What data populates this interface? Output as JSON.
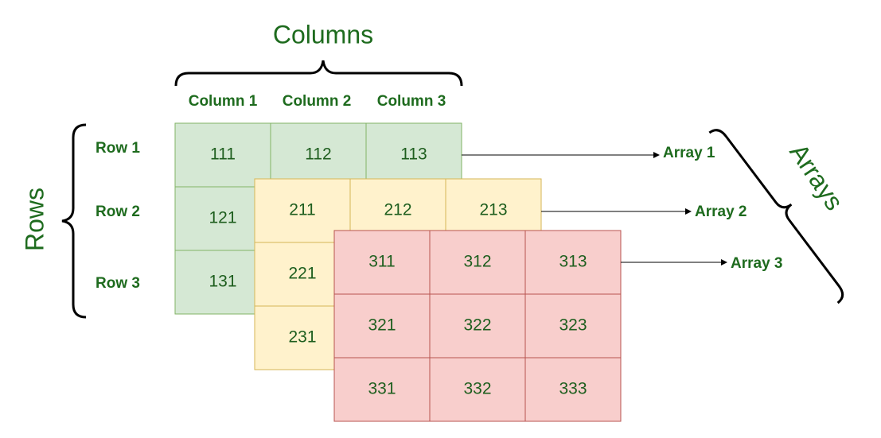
{
  "columns_title": "Columns",
  "columns": [
    "Column 1",
    "Column 2",
    "Column 3"
  ],
  "rows_title": "Rows",
  "rows": [
    "Row 1",
    "Row 2",
    "Row 3"
  ],
  "arrays_title": "Arrays",
  "arrays": [
    {
      "label": "Array 1",
      "cells": [
        [
          "111",
          "112",
          "113"
        ],
        [
          "121"
        ],
        [
          "131"
        ]
      ]
    },
    {
      "label": "Array 2",
      "cells": [
        [
          "211",
          "212",
          "213"
        ],
        [
          "221"
        ],
        [
          "231"
        ]
      ]
    },
    {
      "label": "Array 3",
      "cells": [
        [
          "311",
          "312",
          "313"
        ],
        [
          "321",
          "322",
          "323"
        ],
        [
          "331",
          "332",
          "333"
        ]
      ]
    }
  ]
}
